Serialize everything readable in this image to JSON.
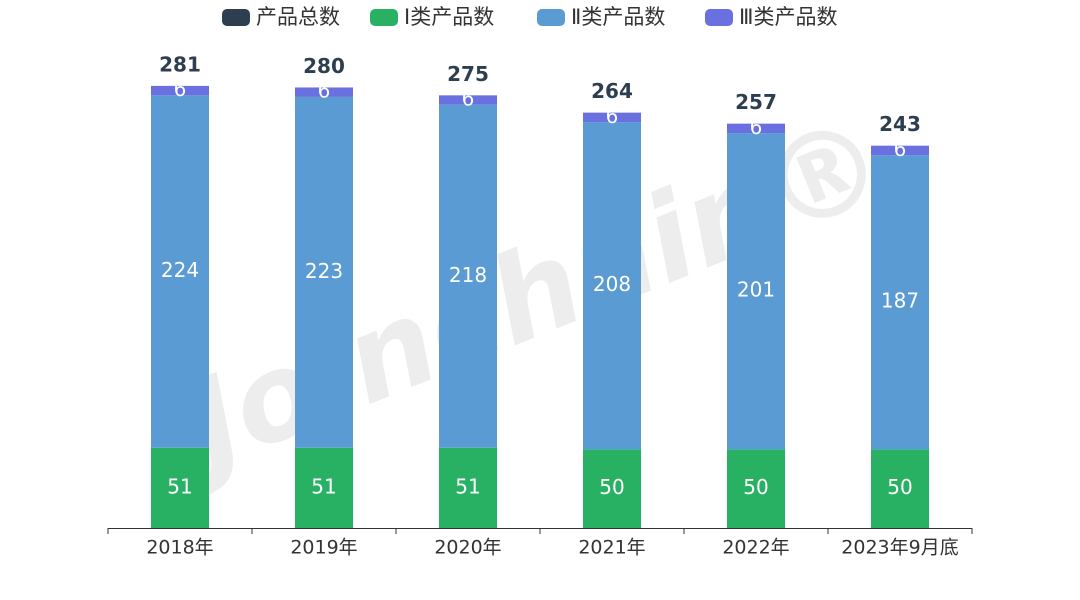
{
  "chart_data": {
    "type": "stacked_bar",
    "categories": [
      "2018年",
      "2019年",
      "2020年",
      "2021年",
      "2022年",
      "2023年9月底"
    ],
    "total": {
      "name": "产品总数",
      "color": "#2d3e50",
      "values": [
        281,
        280,
        275,
        264,
        257,
        243
      ]
    },
    "series": [
      {
        "name": "Ⅰ类产品数",
        "color": "#28b163",
        "values": [
          51,
          51,
          51,
          50,
          50,
          50
        ]
      },
      {
        "name": "Ⅱ类产品数",
        "color": "#5b9bd3",
        "values": [
          224,
          223,
          218,
          208,
          201,
          187
        ]
      },
      {
        "name": "Ⅲ类产品数",
        "color": "#6b70e0",
        "values": [
          6,
          6,
          6,
          6,
          6,
          6
        ]
      }
    ],
    "ylim": [
      0,
      300
    ],
    "watermark": "Joinchain®"
  }
}
